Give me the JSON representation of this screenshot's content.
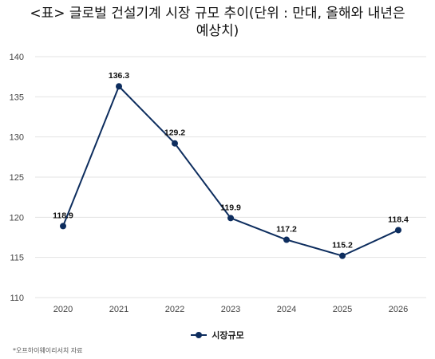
{
  "title_lines": [
    "<표> 글로벌 건설기계 시장 규모 추이(단위 : 만대, 올해와 내년은",
    "예상치)"
  ],
  "legend": {
    "label": "시장규모"
  },
  "source_note": "*오프하이웨이리서치 자료",
  "colors": {
    "series": "#0d2d5e",
    "grid": "#e3e3e3"
  },
  "chart_data": {
    "type": "line",
    "x": [
      "2020",
      "2021",
      "2022",
      "2023",
      "2024",
      "2025",
      "2026"
    ],
    "series": [
      {
        "name": "시장규모",
        "values": [
          118.9,
          136.3,
          129.2,
          119.9,
          117.2,
          115.2,
          118.4
        ]
      }
    ],
    "data_labels": [
      "118.9",
      "136.3",
      "129.2",
      "119.9",
      "117.2",
      "115.2",
      "118.4"
    ],
    "y_ticks": [
      110,
      115,
      120,
      125,
      130,
      135,
      140
    ],
    "ylim": [
      110,
      140
    ],
    "grid": true,
    "legend_position": "bottom"
  }
}
